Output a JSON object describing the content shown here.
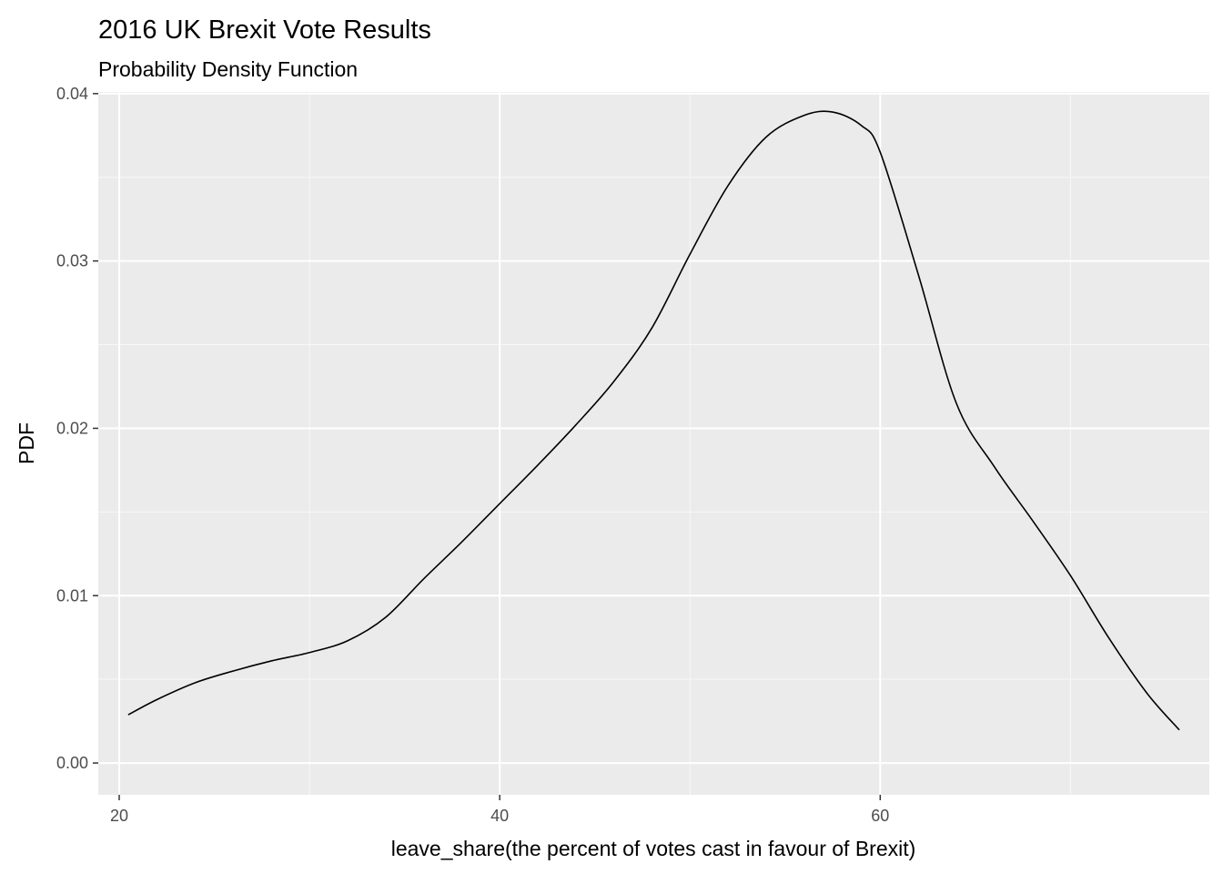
{
  "chart_data": {
    "type": "line",
    "title": "2016 UK Brexit Vote Results",
    "subtitle": "Probability Density Function",
    "xlabel": "leave_share(the percent of votes cast in favour of Brexit)",
    "ylabel": "PDF",
    "xlim": [
      18.9,
      77.3
    ],
    "ylim": [
      -0.0019,
      0.0401
    ],
    "x_ticks": [
      20,
      40,
      60
    ],
    "x_tick_labels": [
      "20",
      "40",
      "60"
    ],
    "x_minor_ticks": [
      30,
      50,
      70
    ],
    "y_ticks": [
      0.0,
      0.01,
      0.02,
      0.03,
      0.04
    ],
    "y_tick_labels": [
      "0.00",
      "0.01",
      "0.02",
      "0.03",
      "0.04"
    ],
    "y_minor_ticks": [
      0.005,
      0.015,
      0.025,
      0.035
    ],
    "grid": true,
    "colors": {
      "panel_background": "#ebebeb",
      "grid_major": "#ffffff",
      "grid_minor": "#f7f7f7",
      "line": "#000000",
      "tick_text": "#4d4d4d",
      "tick_mark": "#333333"
    },
    "series": [
      {
        "x": [
          20.5,
          22,
          24,
          26,
          28,
          30,
          32,
          34,
          36,
          38,
          40,
          42,
          44,
          46,
          48,
          50,
          52,
          54,
          56,
          57.5,
          59,
          60,
          62,
          64,
          66,
          68,
          70,
          72,
          74,
          75.7
        ],
        "y": [
          0.0029,
          0.0038,
          0.0048,
          0.0055,
          0.0061,
          0.0066,
          0.0073,
          0.0087,
          0.011,
          0.0132,
          0.0155,
          0.0178,
          0.0202,
          0.0228,
          0.026,
          0.0304,
          0.0345,
          0.0374,
          0.0387,
          0.0389,
          0.0381,
          0.0365,
          0.0292,
          0.0215,
          0.0177,
          0.0145,
          0.0112,
          0.0075,
          0.0042,
          0.002
        ]
      }
    ]
  }
}
